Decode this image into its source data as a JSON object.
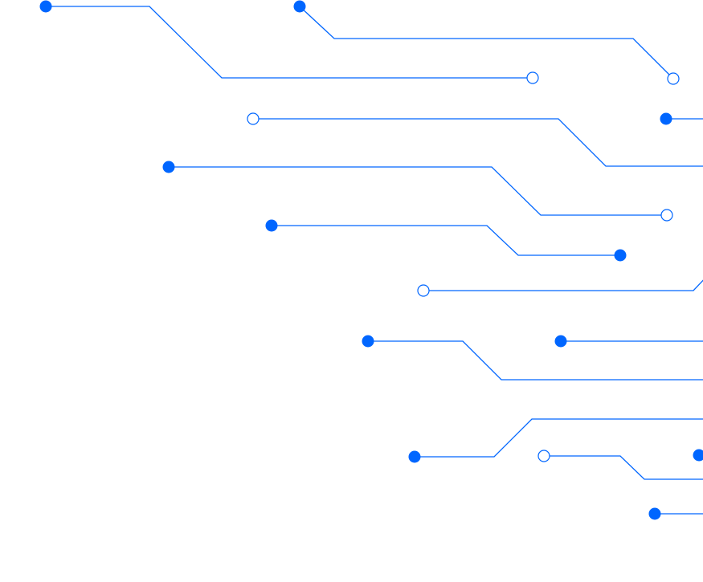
{
  "graphic": {
    "style": "circuit-traces",
    "trace_color": "#0066ff",
    "background": "#ffffff"
  }
}
